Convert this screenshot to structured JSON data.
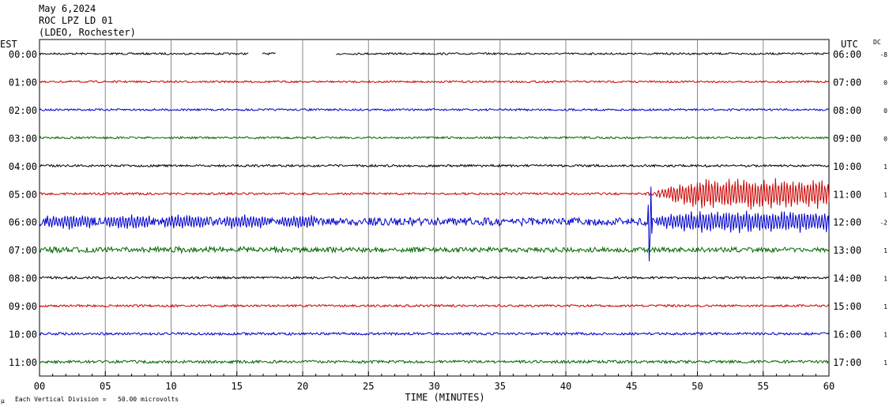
{
  "header": {
    "date": "May 6,2024",
    "station": "ROC LPZ LD 01",
    "network": "(LDEO, Rochester)"
  },
  "left_axis_label": "EST",
  "right_axis_label": "UTC",
  "dc_label": "DC",
  "footer": {
    "scale_symbol": "μ",
    "scale_text": "Each Vertical Division =   50.00 microvolts"
  },
  "chart_data": {
    "type": "line",
    "xlabel": "TIME (MINUTES)",
    "xlim": [
      0,
      60
    ],
    "x_ticks": [
      "00",
      "05",
      "10",
      "15",
      "20",
      "25",
      "30",
      "35",
      "40",
      "45",
      "50",
      "55",
      "60"
    ],
    "trace_colors": [
      "#000000",
      "#cc0000",
      "#0000cc",
      "#006600"
    ],
    "rows": [
      {
        "est": "00:00",
        "utc": "06:00",
        "dc": "-8",
        "color": "#000000",
        "amplitude": 1.2,
        "gaps": [
          [
            15.9,
            16.9
          ],
          [
            18.0,
            22.5
          ]
        ]
      },
      {
        "est": "01:00",
        "utc": "07:00",
        "dc": "0",
        "color": "#cc0000",
        "amplitude": 1.2
      },
      {
        "est": "02:00",
        "utc": "08:00",
        "dc": "0",
        "color": "#0000cc",
        "amplitude": 1.3
      },
      {
        "est": "03:00",
        "utc": "09:00",
        "dc": "0",
        "color": "#006600",
        "amplitude": 1.3
      },
      {
        "est": "04:00",
        "utc": "10:00",
        "dc": "1",
        "color": "#000000",
        "amplitude": 1.4
      },
      {
        "est": "05:00",
        "utc": "11:00",
        "dc": "1",
        "color": "#cc0000",
        "amplitude": 1.4
      },
      {
        "est": "06:00",
        "utc": "12:00",
        "dc": "-2",
        "color": "#0000cc",
        "amplitude": 5
      },
      {
        "est": "07:00",
        "utc": "13:00",
        "dc": "1",
        "color": "#006600",
        "amplitude": 3
      },
      {
        "est": "08:00",
        "utc": "14:00",
        "dc": "1",
        "color": "#000000",
        "amplitude": 1.4
      },
      {
        "est": "09:00",
        "utc": "15:00",
        "dc": "1",
        "color": "#cc0000",
        "amplitude": 1.4
      },
      {
        "est": "10:00",
        "utc": "16:00",
        "dc": "1",
        "color": "#0000cc",
        "amplitude": 1.6
      },
      {
        "est": "11:00",
        "utc": "17:00",
        "dc": "1",
        "color": "#006600",
        "amplitude": 1.8
      }
    ],
    "events": [
      {
        "row": 5,
        "start_min": 45.5,
        "end_min": 60,
        "peak_amplitude": 16
      },
      {
        "row": 6,
        "start_min": 44.5,
        "end_min": 60,
        "peak_amplitude": 12
      },
      {
        "row": 6,
        "start_min": 46.2,
        "end_min": 46.6,
        "peak_amplitude": 70
      }
    ],
    "grid": true
  }
}
